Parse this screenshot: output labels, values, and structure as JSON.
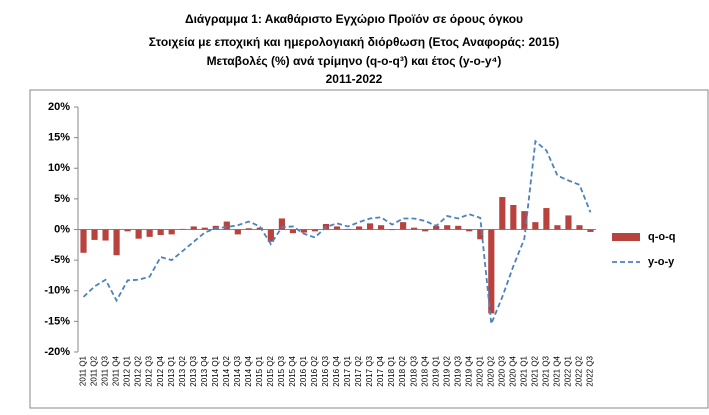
{
  "chart_data": {
    "type": "bar-line",
    "title": [
      "Διάγραμμα 1: Ακαθάριστο Εγχώριο Προϊόν σε όρους όγκου",
      "Στοιχεία με εποχική και ημερολογιακή διόρθωση (Ετος Αναφοράς: 2015)",
      "Μεταβολές (%) ανά τρίμηνο (q-o-q³) και έτος (y-o-y⁴)",
      "2011-2022"
    ],
    "categories": [
      "2011 Q1",
      "2011 Q2",
      "2011 Q3",
      "2011 Q4",
      "2012 Q1",
      "2012 Q2",
      "2012 Q3",
      "2012 Q4",
      "2013 Q1",
      "2013 Q2",
      "2013 Q3",
      "2013 Q4",
      "2014 Q1",
      "2014 Q2",
      "2014 Q3",
      "2014 Q4",
      "2015 Q1",
      "2015 Q2",
      "2015 Q3",
      "2015 Q4",
      "2016 Q1",
      "2016 Q2",
      "2016 Q3",
      "2016 Q4",
      "2017 Q1",
      "2017 Q2",
      "2017 Q3",
      "2017 Q4",
      "2018 Q1",
      "2018 Q2",
      "2018 Q3",
      "2018 Q4",
      "2019 Q1",
      "2019 Q2",
      "2019 Q3",
      "2019 Q4",
      "2020 Q1",
      "2020 Q2",
      "2020 Q3",
      "2020 Q4",
      "2021 Q1",
      "2021 Q2",
      "2021 Q3",
      "2021 Q4",
      "2022 Q1",
      "2022 Q2",
      "2022 Q3"
    ],
    "series": [
      {
        "name": "q-o-q",
        "kind": "bar",
        "color": "#b8423e",
        "values": [
          -3.8,
          -1.7,
          -1.8,
          -4.2,
          -0.3,
          -1.5,
          -1.2,
          -0.9,
          -0.8,
          0.1,
          0.5,
          0.3,
          0.6,
          1.3,
          -0.8,
          0.2,
          0.3,
          -2.0,
          1.8,
          -0.6,
          -0.5,
          -0.3,
          0.9,
          0.5,
          0.1,
          0.5,
          1.0,
          0.7,
          -0.1,
          1.2,
          0.3,
          -0.3,
          0.6,
          0.7,
          0.6,
          -0.3,
          -1.6,
          -13.7,
          5.3,
          4.0,
          3.0,
          1.2,
          3.5,
          0.7,
          2.3,
          0.7,
          -0.4
        ]
      },
      {
        "name": "y-o-y",
        "kind": "line",
        "color": "#4f81bd",
        "values": [
          -11.0,
          -9.3,
          -8.2,
          -11.6,
          -8.3,
          -8.2,
          -7.7,
          -4.5,
          -5.0,
          -3.5,
          -2.0,
          -0.5,
          0.2,
          0.4,
          0.7,
          1.3,
          0.5,
          -2.4,
          0.4,
          0.5,
          -0.7,
          -1.3,
          0.4,
          1.0,
          0.5,
          1.2,
          1.8,
          2.0,
          0.8,
          1.8,
          1.8,
          1.4,
          0.6,
          2.2,
          1.8,
          2.5,
          1.9,
          -15.4,
          -11.0,
          -6.0,
          -1.5,
          14.4,
          12.9,
          8.8,
          8.0,
          7.3,
          2.8
        ]
      }
    ],
    "ylim": [
      -20,
      20
    ],
    "yticks": [
      {
        "value": -20,
        "label": "-20%"
      },
      {
        "value": -15,
        "label": "-15%"
      },
      {
        "value": -10,
        "label": "-10%"
      },
      {
        "value": -5,
        "label": "-5%"
      },
      {
        "value": 0,
        "label": "0%"
      },
      {
        "value": 5,
        "label": "5%"
      },
      {
        "value": 10,
        "label": "10%"
      },
      {
        "value": 15,
        "label": "15%"
      },
      {
        "value": 20,
        "label": "20%"
      }
    ],
    "grid": false
  }
}
